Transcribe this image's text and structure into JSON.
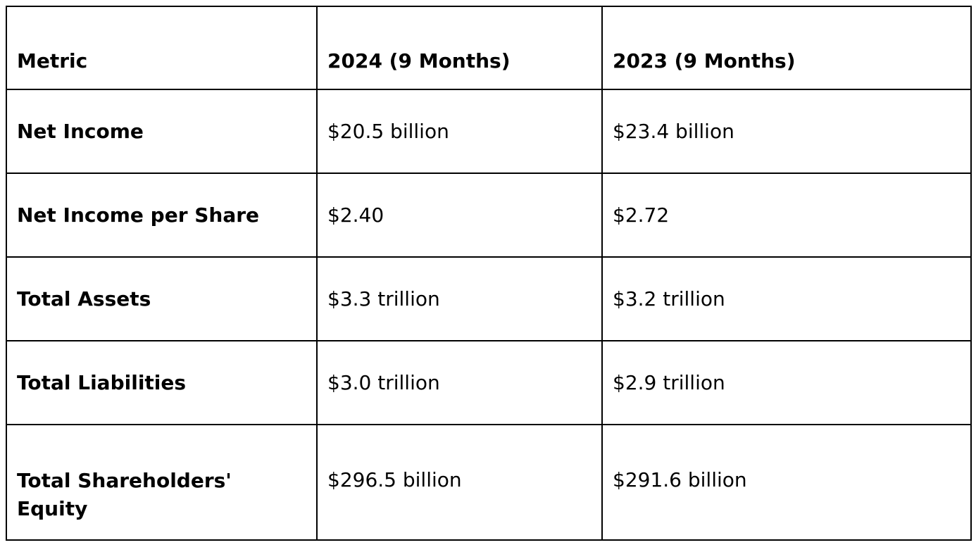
{
  "table": {
    "headers": [
      "Metric",
      "2024 (9 Months)",
      "2023 (9 Months)"
    ],
    "rows": [
      {
        "metric": "Net Income",
        "y2024": "$20.5 billion",
        "y2023": "$23.4 billion"
      },
      {
        "metric": "Net Income per Share",
        "y2024": "$2.40",
        "y2023": "$2.72"
      },
      {
        "metric": "Total Assets",
        "y2024": "$3.3 trillion",
        "y2023": "$3.2 trillion"
      },
      {
        "metric": "Total Liabilities",
        "y2024": "$3.0 trillion",
        "y2023": "$2.9 trillion"
      },
      {
        "metric": "Total Shareholders' Equity",
        "y2024": "$296.5 billion",
        "y2023": "$291.6 billion"
      }
    ]
  }
}
